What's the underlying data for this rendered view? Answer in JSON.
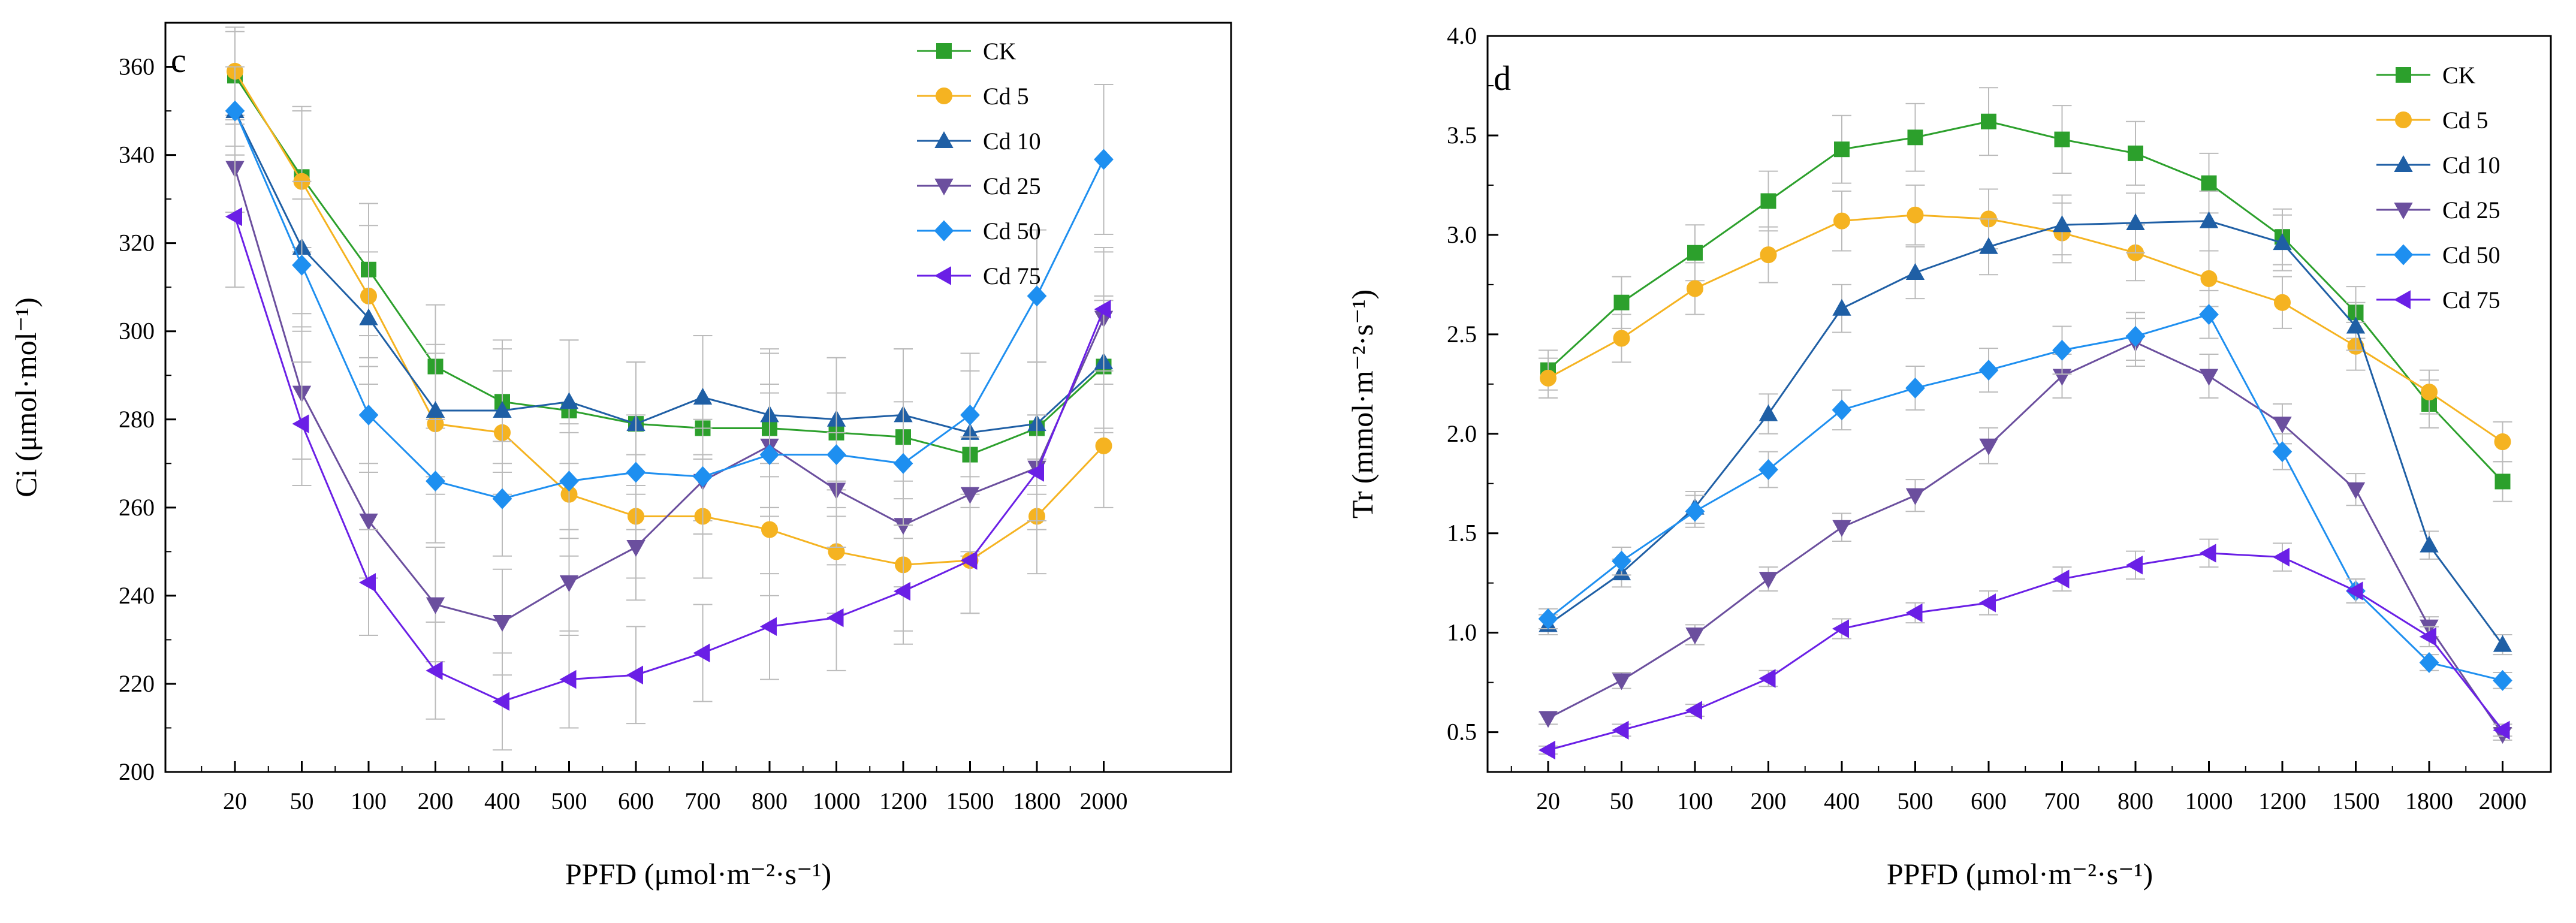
{
  "figure": {
    "panels": [
      "c",
      "d"
    ],
    "series_colors": {
      "CK": "#2ca02c",
      "Cd 5": "#f5b321",
      "Cd 10": "#1f5fa5",
      "Cd 25": "#6b4f9e",
      "Cd 50": "#1e8ff0",
      "Cd 75": "#6a1fe6"
    },
    "series_markers": {
      "CK": "square",
      "Cd 5": "circle",
      "Cd 10": "triangle-up",
      "Cd 25": "triangle-down",
      "Cd 50": "diamond",
      "Cd 75": "triangle-left"
    },
    "errorbar_color": "#bbbbbb"
  },
  "chart_data": [
    {
      "type": "line",
      "panel_label": "c",
      "title": "",
      "xlabel": "PPFD (μmol·m⁻²·s⁻¹)",
      "ylabel": "Ci (μmol·mol⁻¹)",
      "categories": [
        "20",
        "50",
        "100",
        "200",
        "400",
        "500",
        "600",
        "700",
        "800",
        "1000",
        "1200",
        "1500",
        "1800",
        "2000"
      ],
      "ylim": [
        200,
        370
      ],
      "yticks": [
        "200",
        "220",
        "240",
        "260",
        "280",
        "300",
        "320",
        "340",
        "360"
      ],
      "grid": false,
      "legend_position": "top-right",
      "series": [
        {
          "name": "CK",
          "values": [
            358,
            335,
            314,
            292,
            284,
            282,
            279,
            278,
            278,
            277,
            276,
            272,
            278,
            292
          ],
          "errors": [
            10,
            16,
            15,
            14,
            14,
            16,
            14,
            21,
            18,
            17,
            20,
            23,
            15,
            15
          ]
        },
        {
          "name": "Cd 5",
          "values": [
            359,
            334,
            308,
            279,
            277,
            263,
            258,
            258,
            255,
            250,
            247,
            248,
            258,
            274
          ],
          "errors": [
            10,
            16,
            16,
            16,
            14,
            14,
            14,
            14,
            15,
            14,
            15,
            12,
            13,
            14
          ]
        },
        {
          "name": "Cd 10",
          "values": [
            350,
            319,
            303,
            282,
            282,
            284,
            279,
            285,
            281,
            280,
            281,
            277,
            279,
            293
          ],
          "errors": [
            10,
            15,
            15,
            15,
            14,
            14,
            14,
            14,
            14,
            14,
            15,
            14,
            14,
            15
          ]
        },
        {
          "name": "Cd 25",
          "values": [
            337,
            286,
            257,
            238,
            234,
            243,
            251,
            266,
            274,
            264,
            256,
            263,
            269,
            303
          ],
          "errors": [
            10,
            15,
            13,
            13,
            12,
            12,
            12,
            12,
            14,
            13,
            14,
            13,
            12,
            15
          ]
        },
        {
          "name": "Cd 50",
          "values": [
            350,
            315,
            281,
            266,
            262,
            266,
            268,
            267,
            272,
            272,
            270,
            281,
            308,
            339
          ],
          "errors": [
            10,
            15,
            13,
            14,
            13,
            13,
            13,
            13,
            14,
            14,
            14,
            14,
            15,
            17
          ]
        },
        {
          "name": "Cd 75",
          "values": [
            326,
            279,
            243,
            223,
            216,
            221,
            222,
            227,
            233,
            235,
            241,
            248,
            268,
            305
          ],
          "errors": [
            16,
            14,
            12,
            11,
            11,
            11,
            11,
            11,
            12,
            12,
            12,
            12,
            13,
            14
          ]
        }
      ]
    },
    {
      "type": "line",
      "panel_label": "d",
      "title": "",
      "xlabel": "PPFD (μmol·m⁻²·s⁻¹)",
      "ylabel": "Tr (mmol·m⁻²·s⁻¹)",
      "categories": [
        "20",
        "50",
        "100",
        "200",
        "400",
        "500",
        "600",
        "700",
        "800",
        "1000",
        "1200",
        "1500",
        "1800",
        "2000"
      ],
      "ylim": [
        0.3,
        4.0
      ],
      "yticks": [
        "0.5",
        "1.0",
        "1.5",
        "2.0",
        "2.5",
        "3.0",
        "3.5",
        "4.0"
      ],
      "grid": false,
      "legend_position": "top-right",
      "series": [
        {
          "name": "CK",
          "values": [
            2.32,
            2.66,
            2.91,
            3.17,
            3.43,
            3.49,
            3.57,
            3.48,
            3.41,
            3.26,
            2.99,
            2.61,
            2.15,
            1.76
          ],
          "errors": [
            0.1,
            0.13,
            0.14,
            0.15,
            0.17,
            0.17,
            0.17,
            0.17,
            0.16,
            0.15,
            0.14,
            0.13,
            0.12,
            0.1
          ]
        },
        {
          "name": "Cd 5",
          "values": [
            2.28,
            2.48,
            2.73,
            2.9,
            3.07,
            3.1,
            3.08,
            3.01,
            2.91,
            2.78,
            2.66,
            2.44,
            2.21,
            1.96
          ],
          "errors": [
            0.1,
            0.12,
            0.13,
            0.14,
            0.15,
            0.15,
            0.15,
            0.15,
            0.14,
            0.14,
            0.13,
            0.12,
            0.11,
            0.1
          ]
        },
        {
          "name": "Cd 10",
          "values": [
            1.04,
            1.3,
            1.63,
            2.1,
            2.63,
            2.81,
            2.94,
            3.05,
            3.06,
            3.07,
            2.96,
            2.54,
            1.44,
            0.94
          ],
          "errors": [
            0.05,
            0.07,
            0.08,
            0.1,
            0.12,
            0.13,
            0.14,
            0.15,
            0.15,
            0.15,
            0.14,
            0.12,
            0.07,
            0.05
          ]
        },
        {
          "name": "Cd 25",
          "values": [
            0.57,
            0.76,
            0.99,
            1.27,
            1.53,
            1.69,
            1.94,
            2.29,
            2.46,
            2.29,
            2.05,
            1.72,
            1.03,
            0.49
          ],
          "errors": [
            0.03,
            0.04,
            0.05,
            0.06,
            0.07,
            0.08,
            0.09,
            0.11,
            0.12,
            0.11,
            0.1,
            0.08,
            0.05,
            0.03
          ]
        },
        {
          "name": "Cd 50",
          "values": [
            1.07,
            1.36,
            1.61,
            1.82,
            2.12,
            2.23,
            2.32,
            2.42,
            2.49,
            2.6,
            1.91,
            1.21,
            0.85,
            0.76
          ],
          "errors": [
            0.05,
            0.07,
            0.08,
            0.09,
            0.1,
            0.11,
            0.11,
            0.12,
            0.12,
            0.12,
            0.09,
            0.06,
            0.04,
            0.04
          ]
        },
        {
          "name": "Cd 75",
          "values": [
            0.41,
            0.51,
            0.61,
            0.77,
            1.02,
            1.1,
            1.15,
            1.27,
            1.34,
            1.4,
            1.38,
            1.21,
            0.98,
            0.51
          ],
          "errors": [
            0.02,
            0.03,
            0.03,
            0.04,
            0.05,
            0.05,
            0.06,
            0.06,
            0.07,
            0.07,
            0.07,
            0.06,
            0.05,
            0.03
          ]
        }
      ]
    }
  ]
}
